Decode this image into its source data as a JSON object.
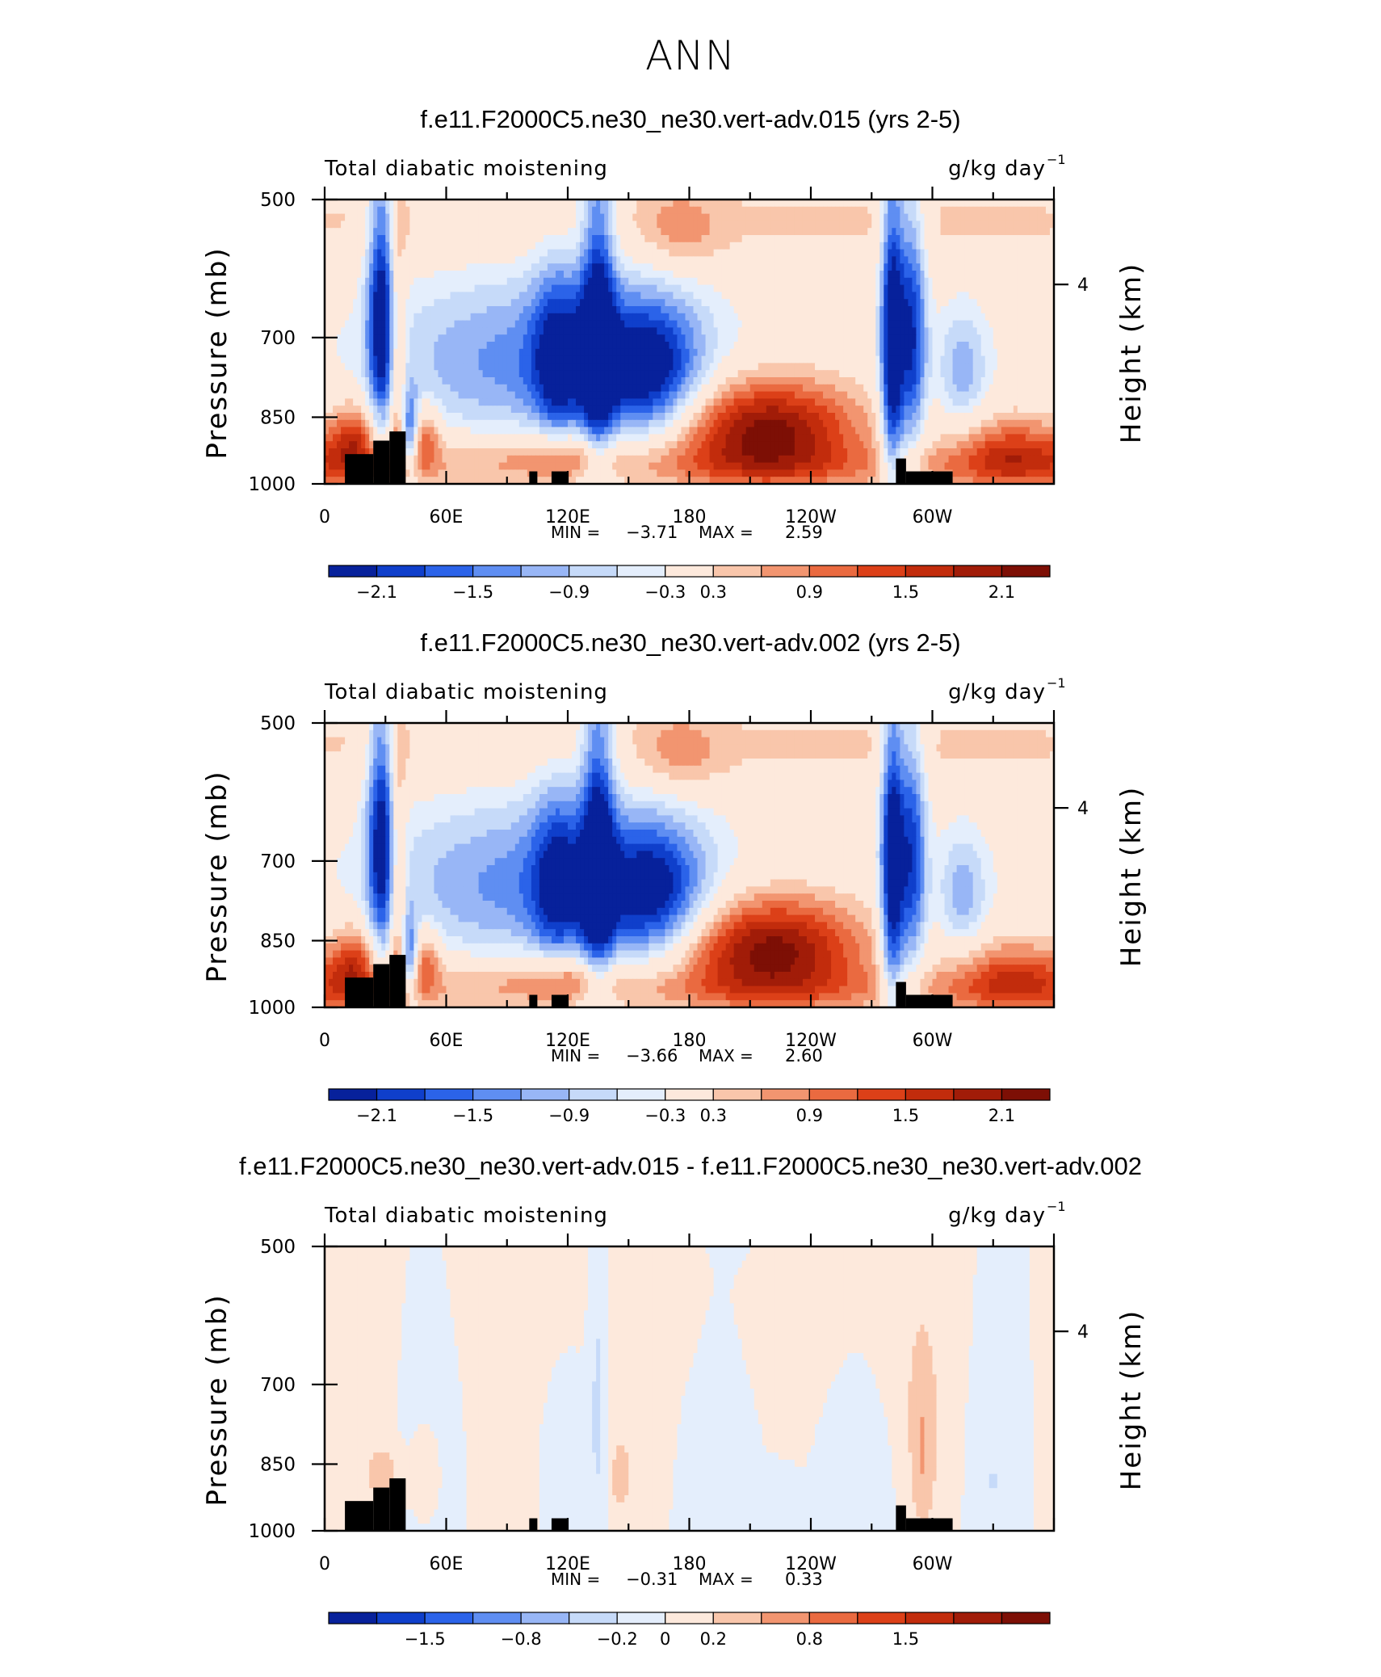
{
  "page_title": "ANN",
  "chart_data": [
    {
      "type": "heatmap",
      "title": "f.e11.F2000C5.ne30_ne30.vert-adv.015 (yrs 2-5)",
      "left_label": "Total diabatic moistening",
      "units": "g/kg day",
      "units_exp": "−1",
      "ylabel": "Pressure (mb)",
      "ylabel_right": "Height (km)",
      "yticks": [
        "500",
        "700",
        "850",
        "1000"
      ],
      "yticks_right": [
        "4"
      ],
      "xticks": [
        "0",
        "60E",
        "120E",
        "180",
        "120W",
        "60W"
      ],
      "ylim": [
        1000,
        500
      ],
      "xlim": [
        0,
        360
      ],
      "min_label": "MIN =",
      "min_value": "−3.71",
      "max_label": "MAX =",
      "max_value": "2.59",
      "colorbar_labels": [
        "−2.1",
        "−1.5",
        "−0.9",
        "−0.3",
        "0.3",
        "0.9",
        "1.5",
        "2.1"
      ],
      "colorbar_colors": [
        "#07219b",
        "#0f3fcb",
        "#2b63e9",
        "#5f8ef2",
        "#98b6f6",
        "#c6daf9",
        "#e4eefc",
        "#fde9dc",
        "#f9c6ab",
        "#f29570",
        "#ea6a40",
        "#dc4018",
        "#c22c0c",
        "#a11c08",
        "#7d0f05"
      ],
      "anomalies": [
        {
          "lon": 28,
          "p": 650,
          "v": -2.2,
          "dlon": 5,
          "dp": 160
        },
        {
          "lon": 36,
          "p": 790,
          "v": 1.2,
          "dlon": 3,
          "dp": 220
        },
        {
          "lon": 42,
          "p": 880,
          "v": -1.6,
          "dlon": 3,
          "dp": 60
        },
        {
          "lon": 15,
          "p": 900,
          "v": 1.3,
          "dlon": 8,
          "dp": 60
        },
        {
          "lon": 50,
          "p": 890,
          "v": 1.1,
          "dlon": 5,
          "dp": 50
        },
        {
          "lon": 100,
          "p": 760,
          "v": -1.0,
          "dlon": 50,
          "dp": 130
        },
        {
          "lon": 115,
          "p": 740,
          "v": -1.4,
          "dlon": 9,
          "dp": 120
        },
        {
          "lon": 135,
          "p": 680,
          "v": -1.9,
          "dlon": 6,
          "dp": 220
        },
        {
          "lon": 160,
          "p": 760,
          "v": -2.0,
          "dlon": 18,
          "dp": 90
        },
        {
          "lon": 90,
          "p": 920,
          "v": 0.4,
          "dlon": 50,
          "dp": 50
        },
        {
          "lon": 120,
          "p": 930,
          "v": 0.8,
          "dlon": 18,
          "dp": 40
        },
        {
          "lon": 175,
          "p": 540,
          "v": 0.6,
          "dlon": 14,
          "dp": 40
        },
        {
          "lon": 218,
          "p": 880,
          "v": 2.3,
          "dlon": 32,
          "dp": 80
        },
        {
          "lon": 280,
          "p": 720,
          "v": -2.6,
          "dlon": 4,
          "dp": 200
        },
        {
          "lon": 290,
          "p": 700,
          "v": -2.0,
          "dlon": 5,
          "dp": 160
        },
        {
          "lon": 315,
          "p": 760,
          "v": -1.0,
          "dlon": 9,
          "dp": 80
        },
        {
          "lon": 340,
          "p": 930,
          "v": 1.4,
          "dlon": 22,
          "dp": 60
        }
      ],
      "land": [
        {
          "lon0": 10,
          "lon1": 24,
          "p0": 930,
          "p1": 1000
        },
        {
          "lon0": 24,
          "lon1": 32,
          "p0": 900,
          "p1": 1000
        },
        {
          "lon0": 32,
          "lon1": 40,
          "p0": 880,
          "p1": 1000
        },
        {
          "lon0": 101,
          "lon1": 105,
          "p0": 970,
          "p1": 1000
        },
        {
          "lon0": 112,
          "lon1": 120,
          "p0": 970,
          "p1": 1000
        },
        {
          "lon0": 282,
          "lon1": 287,
          "p0": 940,
          "p1": 1000
        },
        {
          "lon0": 287,
          "lon1": 310,
          "p0": 970,
          "p1": 1000
        }
      ]
    },
    {
      "type": "heatmap",
      "title": "f.e11.F2000C5.ne30_ne30.vert-adv.002 (yrs 2-5)",
      "left_label": "Total diabatic moistening",
      "units": "g/kg day",
      "units_exp": "−1",
      "ylabel": "Pressure (mb)",
      "ylabel_right": "Height (km)",
      "yticks": [
        "500",
        "700",
        "850",
        "1000"
      ],
      "yticks_right": [
        "4"
      ],
      "xticks": [
        "0",
        "60E",
        "120E",
        "180",
        "120W",
        "60W"
      ],
      "ylim": [
        1000,
        500
      ],
      "xlim": [
        0,
        360
      ],
      "min_label": "MIN =",
      "min_value": "−3.66",
      "max_label": "MAX =",
      "max_value": "2.60",
      "colorbar_labels": [
        "−2.1",
        "−1.5",
        "−0.9",
        "−0.3",
        "0.3",
        "0.9",
        "1.5",
        "2.1"
      ],
      "colorbar_colors": [
        "#07219b",
        "#0f3fcb",
        "#2b63e9",
        "#5f8ef2",
        "#98b6f6",
        "#c6daf9",
        "#e4eefc",
        "#fde9dc",
        "#f9c6ab",
        "#f29570",
        "#ea6a40",
        "#dc4018",
        "#c22c0c",
        "#a11c08",
        "#7d0f05"
      ],
      "anomalies": [
        {
          "lon": 28,
          "p": 650,
          "v": -2.1,
          "dlon": 5,
          "dp": 160
        },
        {
          "lon": 36,
          "p": 790,
          "v": 1.2,
          "dlon": 3,
          "dp": 220
        },
        {
          "lon": 42,
          "p": 880,
          "v": -1.5,
          "dlon": 3,
          "dp": 60
        },
        {
          "lon": 15,
          "p": 900,
          "v": 1.3,
          "dlon": 8,
          "dp": 60
        },
        {
          "lon": 50,
          "p": 890,
          "v": 1.1,
          "dlon": 5,
          "dp": 50
        },
        {
          "lon": 100,
          "p": 760,
          "v": -1.0,
          "dlon": 50,
          "dp": 130
        },
        {
          "lon": 115,
          "p": 740,
          "v": -1.3,
          "dlon": 9,
          "dp": 120
        },
        {
          "lon": 135,
          "p": 680,
          "v": -1.9,
          "dlon": 6,
          "dp": 220
        },
        {
          "lon": 162,
          "p": 760,
          "v": -1.9,
          "dlon": 18,
          "dp": 90
        },
        {
          "lon": 90,
          "p": 920,
          "v": 0.4,
          "dlon": 50,
          "dp": 50
        },
        {
          "lon": 120,
          "p": 930,
          "v": 0.8,
          "dlon": 18,
          "dp": 40
        },
        {
          "lon": 175,
          "p": 540,
          "v": 0.6,
          "dlon": 14,
          "dp": 40
        },
        {
          "lon": 220,
          "p": 870,
          "v": 2.3,
          "dlon": 32,
          "dp": 80
        },
        {
          "lon": 280,
          "p": 720,
          "v": -2.5,
          "dlon": 4,
          "dp": 200
        },
        {
          "lon": 290,
          "p": 700,
          "v": -1.9,
          "dlon": 5,
          "dp": 160
        },
        {
          "lon": 315,
          "p": 760,
          "v": -1.0,
          "dlon": 9,
          "dp": 80
        },
        {
          "lon": 340,
          "p": 930,
          "v": 1.3,
          "dlon": 22,
          "dp": 60
        }
      ],
      "land": [
        {
          "lon0": 10,
          "lon1": 24,
          "p0": 930,
          "p1": 1000
        },
        {
          "lon0": 24,
          "lon1": 32,
          "p0": 900,
          "p1": 1000
        },
        {
          "lon0": 32,
          "lon1": 40,
          "p0": 880,
          "p1": 1000
        },
        {
          "lon0": 101,
          "lon1": 105,
          "p0": 970,
          "p1": 1000
        },
        {
          "lon0": 112,
          "lon1": 120,
          "p0": 970,
          "p1": 1000
        },
        {
          "lon0": 282,
          "lon1": 287,
          "p0": 940,
          "p1": 1000
        },
        {
          "lon0": 287,
          "lon1": 310,
          "p0": 970,
          "p1": 1000
        }
      ]
    },
    {
      "type": "heatmap",
      "title": "f.e11.F2000C5.ne30_ne30.vert-adv.015 - f.e11.F2000C5.ne30_ne30.vert-adv.002",
      "left_label": "Total diabatic moistening",
      "units": "g/kg day",
      "units_exp": "−1",
      "ylabel": "Pressure (mb)",
      "ylabel_right": "Height (km)",
      "yticks": [
        "500",
        "700",
        "850",
        "1000"
      ],
      "yticks_right": [
        "4"
      ],
      "xticks": [
        "0",
        "60E",
        "120E",
        "180",
        "120W",
        "60W"
      ],
      "ylim": [
        1000,
        500
      ],
      "xlim": [
        0,
        360
      ],
      "min_label": "MIN =",
      "min_value": "−0.31",
      "max_label": "MAX =",
      "max_value": "0.33",
      "colorbar_labels": [
        "−1.5",
        "−0.8",
        "−0.2",
        "0",
        "0.2",
        "0.8",
        "1.5"
      ],
      "colorbar_colors": [
        "#07219b",
        "#0f3fcb",
        "#2b63e9",
        "#5f8ef2",
        "#98b6f6",
        "#c6daf9",
        "#e4eefc",
        "#fde9dc",
        "#f9c6ab",
        "#f29570",
        "#ea6a40",
        "#dc4018",
        "#c22c0c",
        "#a11c08",
        "#7d0f05"
      ],
      "anomalies": [
        {
          "lon": 135,
          "p": 700,
          "v": -0.25,
          "dlon": 3,
          "dp": 200
        },
        {
          "lon": 50,
          "p": 860,
          "v": 0.12,
          "dlon": 6,
          "dp": 80
        },
        {
          "lon": 30,
          "p": 880,
          "v": 0.15,
          "dlon": 5,
          "dp": 40
        },
        {
          "lon": 145,
          "p": 880,
          "v": 0.12,
          "dlon": 4,
          "dp": 60
        },
        {
          "lon": 295,
          "p": 830,
          "v": 0.14,
          "dlon": 4,
          "dp": 120
        },
        {
          "lon": 330,
          "p": 890,
          "v": -0.15,
          "dlon": 4,
          "dp": 50
        },
        {
          "lon": 225,
          "p": 900,
          "v": -0.08,
          "dlon": 6,
          "dp": 40
        },
        {
          "lon": 150,
          "p": 580,
          "v": 0.06,
          "dlon": 60,
          "dp": 120
        },
        {
          "lon": 250,
          "p": 620,
          "v": 0.07,
          "dlon": 40,
          "dp": 120
        }
      ],
      "land": [
        {
          "lon0": 10,
          "lon1": 24,
          "p0": 930,
          "p1": 1000
        },
        {
          "lon0": 24,
          "lon1": 32,
          "p0": 900,
          "p1": 1000
        },
        {
          "lon0": 32,
          "lon1": 40,
          "p0": 880,
          "p1": 1000
        },
        {
          "lon0": 101,
          "lon1": 105,
          "p0": 970,
          "p1": 1000
        },
        {
          "lon0": 112,
          "lon1": 120,
          "p0": 970,
          "p1": 1000
        },
        {
          "lon0": 282,
          "lon1": 287,
          "p0": 940,
          "p1": 1000
        },
        {
          "lon0": 287,
          "lon1": 310,
          "p0": 970,
          "p1": 1000
        }
      ]
    }
  ]
}
